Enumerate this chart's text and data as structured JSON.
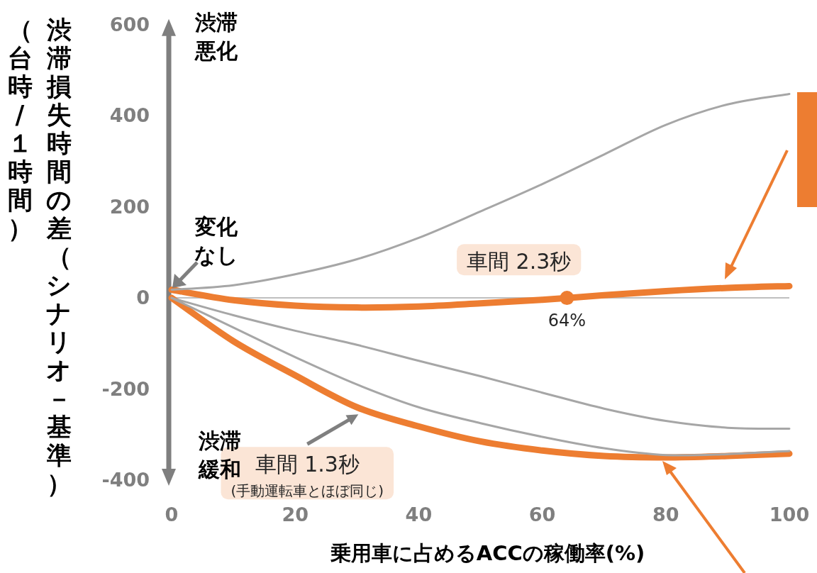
{
  "chart_data": {
    "type": "line",
    "ylabel": "渋滞損失時間の差（シナリオ－基準）（台時/１時間）",
    "xlabel": "乗用車に占めるACCの稼働率(%)",
    "x": [
      0,
      10,
      20,
      30,
      40,
      50,
      60,
      70,
      80,
      90,
      100
    ],
    "series": [
      {
        "color": "#a6a6a6",
        "values": [
          18,
          28,
          52,
          85,
          132,
          190,
          250,
          315,
          380,
          425,
          448
        ]
      },
      {
        "color": "#a6a6a6",
        "values": [
          0,
          -38,
          -72,
          -103,
          -138,
          -172,
          -208,
          -243,
          -270,
          -285,
          -287
        ]
      },
      {
        "color": "#a6a6a6",
        "values": [
          0,
          -65,
          -130,
          -190,
          -240,
          -275,
          -305,
          -330,
          -345,
          -343,
          -336
        ]
      },
      {
        "name": "車間 2.3秒",
        "color": "#ed7d31",
        "values": [
          18,
          -5,
          -17,
          -21,
          -19,
          -12,
          -4,
          6,
          15,
          22,
          26
        ]
      },
      {
        "name": "車間 1.3秒\n(手動運転車とほぼ同じ)",
        "color": "#ed7d31",
        "values": [
          0,
          -95,
          -170,
          -240,
          -282,
          -315,
          -335,
          -347,
          -350,
          -347,
          -342
        ]
      }
    ],
    "xlim": [
      0,
      100
    ],
    "ylim": [
      -400,
      600
    ],
    "xticks": [
      0,
      20,
      40,
      60,
      80,
      100
    ],
    "yticks": [
      -400,
      -200,
      0,
      200,
      400,
      600
    ],
    "ref_lines": [
      {
        "axis": "y",
        "value": 0,
        "color": "#bfbfbf"
      }
    ],
    "annotations": [
      "渋滞悪化",
      "変化なし",
      "渋滞緩和",
      {
        "text": "64%",
        "x": 64,
        "y": 0
      }
    ],
    "grid": false
  }
}
